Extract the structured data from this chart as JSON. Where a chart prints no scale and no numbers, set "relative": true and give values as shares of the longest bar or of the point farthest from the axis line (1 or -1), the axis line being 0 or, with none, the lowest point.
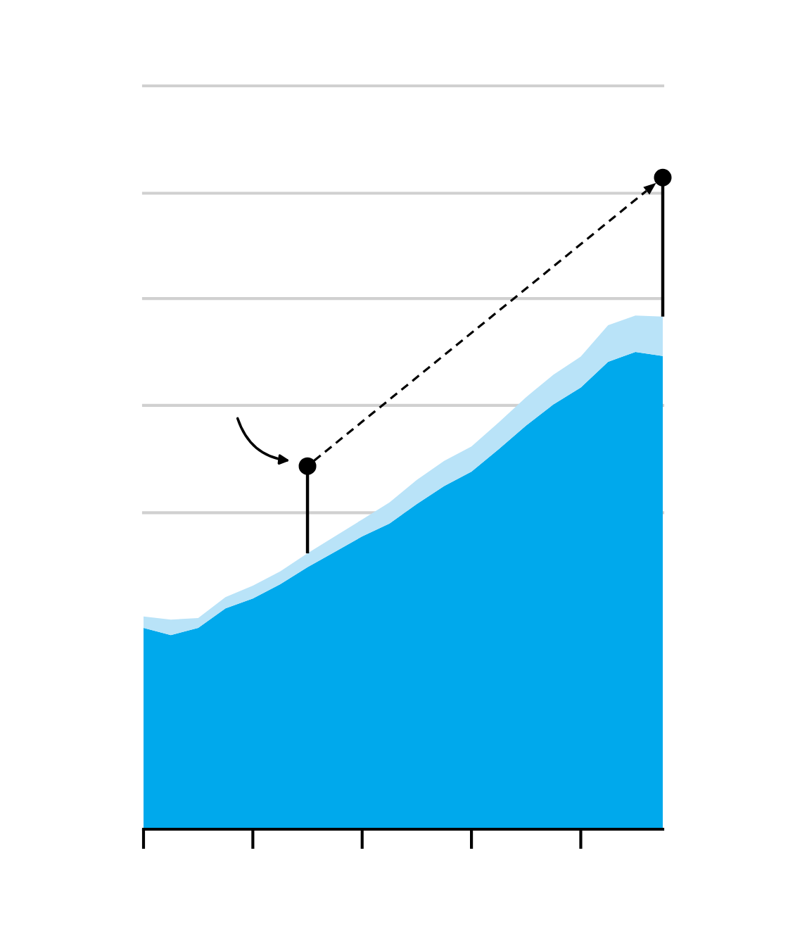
{
  "chart_data": {
    "type": "area",
    "relative": true,
    "stacked": true,
    "categories": [
      null,
      null,
      null,
      null,
      null,
      null,
      null,
      null,
      null,
      null,
      null,
      null,
      null,
      null,
      null,
      null,
      null,
      null,
      null,
      null
    ],
    "series": [
      {
        "color": "#00a9ec",
        "values": [
          0.392,
          0.378,
          0.392,
          0.43,
          0.449,
          0.477,
          0.51,
          0.54,
          0.57,
          0.595,
          0.633,
          0.668,
          0.696,
          0.74,
          0.786,
          0.827,
          0.86,
          0.91,
          0.929,
          0.921
        ]
      },
      {
        "color": "#b9e3f8",
        "values": [
          0.022,
          0.03,
          0.019,
          0.022,
          0.025,
          0.025,
          0.027,
          0.03,
          0.033,
          0.041,
          0.047,
          0.049,
          0.049,
          0.052,
          0.055,
          0.058,
          0.06,
          0.071,
          0.071,
          0.077
        ]
      }
    ],
    "ref_lines": [
      {
        "axis": "y",
        "value": 0.616,
        "color": "#d0d0d0"
      },
      {
        "axis": "y",
        "value": 0.825,
        "color": "#d0d0d0"
      },
      {
        "axis": "y",
        "value": 1.033,
        "color": "#d0d0d0"
      },
      {
        "axis": "y",
        "value": 1.238,
        "color": "#d0d0d0"
      },
      {
        "axis": "y",
        "value": 1.447,
        "color": "#d0d0d0"
      }
    ],
    "grid": false,
    "legend": false
  }
}
